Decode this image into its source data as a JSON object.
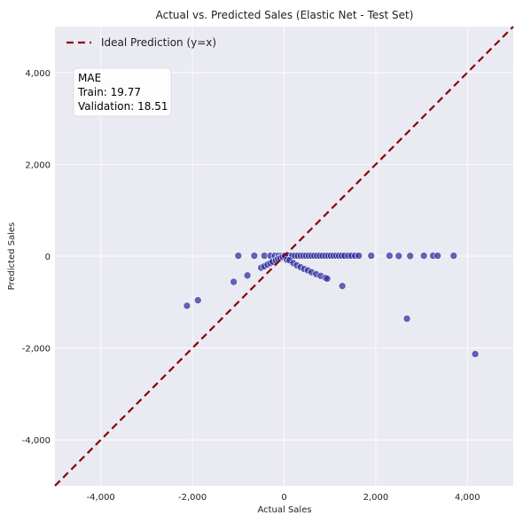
{
  "chart_data": {
    "type": "scatter",
    "title": "Actual vs. Predicted Sales (Elastic Net - Test Set)",
    "xlabel": "Actual Sales",
    "ylabel": "Predicted Sales",
    "xlim": [
      -5000,
      5000
    ],
    "ylim": [
      -5000,
      5000
    ],
    "xticks": [
      -4000,
      -2000,
      0,
      2000,
      4000
    ],
    "yticks": [
      -4000,
      -2000,
      0,
      2000,
      4000
    ],
    "x_tick_labels": [
      "-4,000",
      "-2,000",
      "0",
      "2,000",
      "4,000"
    ],
    "y_tick_labels": [
      "-4,000",
      "-2,000",
      "0",
      "2,000",
      "4,000"
    ],
    "grid": true,
    "legend_position": "top-left",
    "legend": [
      {
        "label": "Ideal Prediction (y=x)",
        "style": "dashed",
        "color": "#8b0000"
      }
    ],
    "annotation": {
      "lines": [
        "MAE",
        "Train: 19.77",
        "Validation: 18.51"
      ]
    },
    "colors": {
      "background": "#eaeaf2",
      "points": "#2b2b9c",
      "ideal_line": "#8b0000"
    },
    "ideal_line": {
      "from": [
        -5000,
        -5000
      ],
      "to": [
        5000,
        5000
      ]
    },
    "series": [
      {
        "points": [
          [
            -2120,
            -1080
          ],
          [
            -1880,
            -960
          ],
          [
            -1100,
            -560
          ],
          [
            -800,
            -420
          ],
          [
            -1000,
            10
          ],
          [
            -650,
            10
          ],
          [
            -430,
            10
          ],
          [
            -300,
            10
          ],
          [
            -200,
            10
          ],
          [
            -120,
            10
          ],
          [
            -60,
            10
          ],
          [
            0,
            10
          ],
          [
            60,
            10
          ],
          [
            120,
            10
          ],
          [
            180,
            10
          ],
          [
            240,
            10
          ],
          [
            300,
            10
          ],
          [
            360,
            10
          ],
          [
            420,
            10
          ],
          [
            480,
            10
          ],
          [
            540,
            10
          ],
          [
            600,
            10
          ],
          [
            660,
            10
          ],
          [
            720,
            10
          ],
          [
            780,
            10
          ],
          [
            840,
            10
          ],
          [
            900,
            10
          ],
          [
            960,
            10
          ],
          [
            1020,
            10
          ],
          [
            1080,
            10
          ],
          [
            1140,
            10
          ],
          [
            1200,
            10
          ],
          [
            1260,
            10
          ],
          [
            1320,
            10
          ],
          [
            1400,
            10
          ],
          [
            1470,
            10
          ],
          [
            1550,
            10
          ],
          [
            1630,
            10
          ],
          [
            1900,
            10
          ],
          [
            2300,
            10
          ],
          [
            2500,
            5
          ],
          [
            2750,
            5
          ],
          [
            3050,
            10
          ],
          [
            3250,
            10
          ],
          [
            3350,
            10
          ],
          [
            3700,
            10
          ],
          [
            -500,
            -250
          ],
          [
            -430,
            -220
          ],
          [
            -360,
            -180
          ],
          [
            -300,
            -150
          ],
          [
            -250,
            -120
          ],
          [
            -180,
            -90
          ],
          [
            -130,
            -60
          ],
          [
            -80,
            -40
          ],
          [
            -30,
            -15
          ],
          [
            20,
            10
          ],
          [
            60,
            -80
          ],
          [
            120,
            -90
          ],
          [
            200,
            -150
          ],
          [
            280,
            -200
          ],
          [
            360,
            -240
          ],
          [
            440,
            -280
          ],
          [
            520,
            -310
          ],
          [
            600,
            -350
          ],
          [
            700,
            -390
          ],
          [
            800,
            -430
          ],
          [
            900,
            -470
          ],
          [
            940,
            -490
          ],
          [
            1270,
            -650
          ],
          [
            2680,
            -1360
          ],
          [
            4170,
            -2130
          ]
        ]
      }
    ]
  }
}
